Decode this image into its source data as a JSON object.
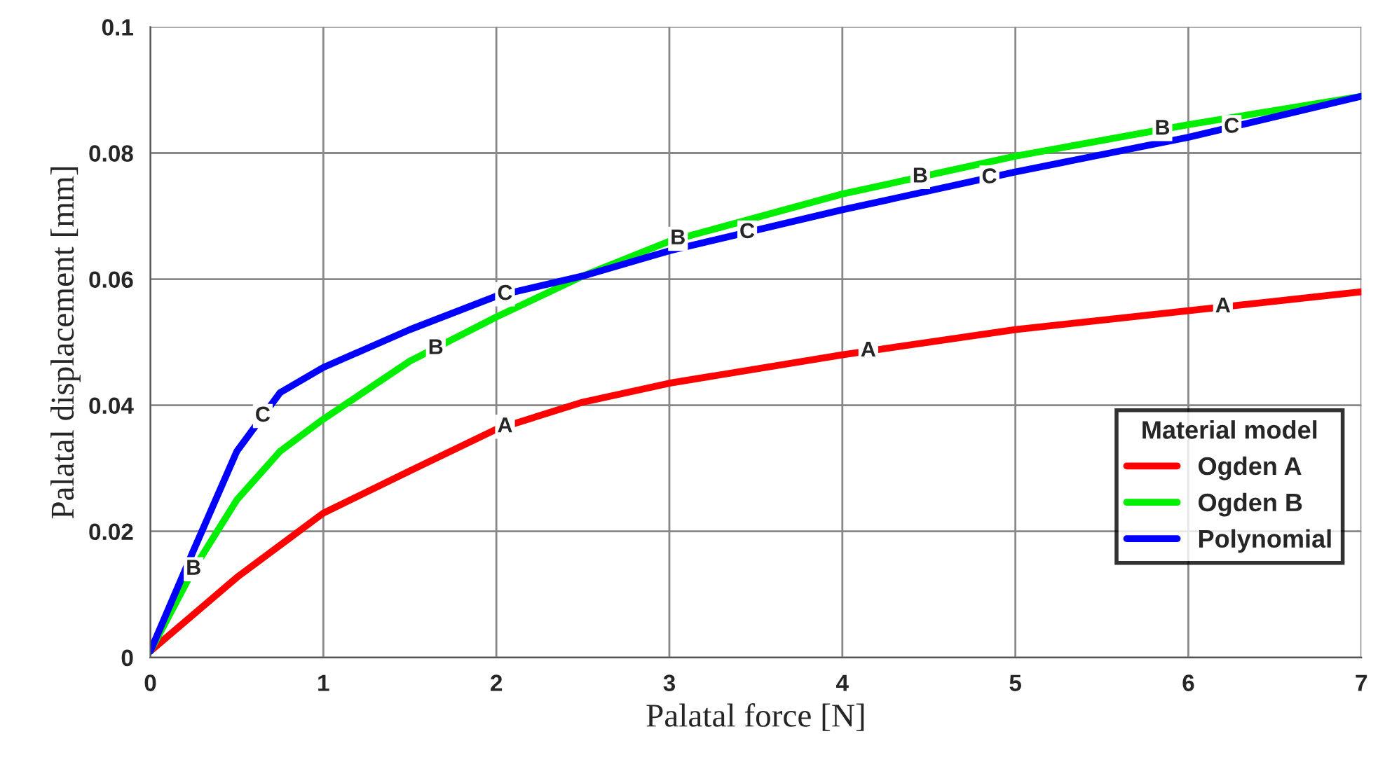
{
  "chart_data": {
    "type": "line",
    "xlabel": "Palatal force [N]",
    "ylabel": "Palatal displacement [mm]",
    "legend_title": "Material model",
    "xlim": [
      0,
      7
    ],
    "xticks": [
      0,
      1,
      2,
      3,
      4,
      5,
      6,
      7
    ],
    "ylim": [
      0,
      0.1
    ],
    "yticks": [
      0,
      0.02,
      0.04,
      0.06,
      0.08,
      0.1
    ],
    "grid": true,
    "legend": "bottom right",
    "series": [
      {
        "name": "Ogden A",
        "color": "#ff0000",
        "x": [
          0,
          0.5,
          1,
          1.5,
          2,
          2.5,
          3,
          4,
          5,
          6,
          7
        ],
        "values": [
          0.001,
          0.0127,
          0.0229,
          0.0296,
          0.0362,
          0.0405,
          0.0435,
          0.048,
          0.052,
          0.055,
          0.058
        ]
      },
      {
        "name": "Ogden B",
        "color": "#00ee00",
        "x": [
          0,
          0.25,
          0.5,
          0.75,
          1,
          1.5,
          2,
          2.5,
          3,
          4,
          5,
          6,
          7
        ],
        "values": [
          0.001,
          0.014,
          0.025,
          0.0327,
          0.0378,
          0.047,
          0.054,
          0.0605,
          0.066,
          0.0735,
          0.0795,
          0.0845,
          0.089
        ]
      },
      {
        "name": "Polynomial",
        "color": "#0000ff",
        "x": [
          0,
          0.25,
          0.5,
          0.75,
          1,
          1.5,
          2,
          2.5,
          3,
          4,
          5,
          6,
          7
        ],
        "values": [
          0.001,
          0.017,
          0.0327,
          0.042,
          0.046,
          0.052,
          0.0573,
          0.0605,
          0.0645,
          0.071,
          0.077,
          0.0825,
          0.089
        ]
      }
    ],
    "annotations": [
      {
        "text": "A",
        "x": 2.05,
        "y": 0.0366
      },
      {
        "text": "A",
        "x": 4.15,
        "y": 0.0486
      },
      {
        "text": "A",
        "x": 6.2,
        "y": 0.0556
      },
      {
        "text": "B",
        "x": 0.25,
        "y": 0.014
      },
      {
        "text": "B",
        "x": 1.65,
        "y": 0.049
      },
      {
        "text": "B",
        "x": 3.05,
        "y": 0.0664
      },
      {
        "text": "B",
        "x": 4.45,
        "y": 0.0762
      },
      {
        "text": "B",
        "x": 5.85,
        "y": 0.0838
      },
      {
        "text": "C",
        "x": 0.65,
        "y": 0.0383
      },
      {
        "text": "C",
        "x": 2.05,
        "y": 0.0576
      },
      {
        "text": "C",
        "x": 3.45,
        "y": 0.0674
      },
      {
        "text": "C",
        "x": 4.85,
        "y": 0.0761
      },
      {
        "text": "C",
        "x": 6.25,
        "y": 0.0841
      }
    ]
  }
}
